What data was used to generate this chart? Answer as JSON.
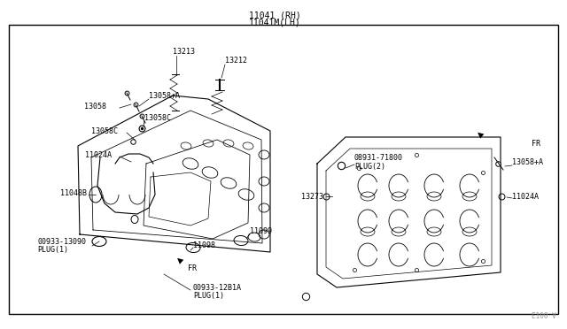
{
  "bg_color": "#ffffff",
  "line_color": "#000000",
  "text_color": "#000000",
  "title_top": "11041 (RH)",
  "title_top2": "11041M(LH)",
  "watermark": "E100 V",
  "fig_width": 6.4,
  "fig_height": 3.72
}
